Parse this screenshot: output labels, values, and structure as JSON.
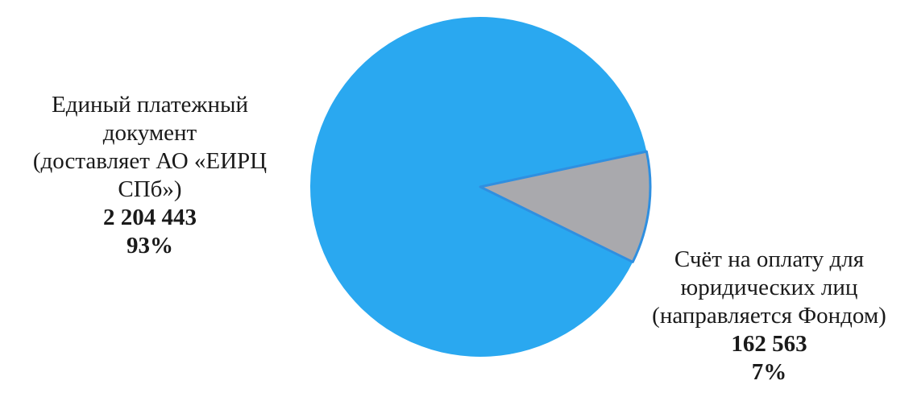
{
  "chart_data": {
    "type": "pie",
    "title": "",
    "slices": [
      {
        "label_lines": [
          "Единый платежный",
          "документ",
          "(доставляет АО «ЕИРЦ",
          "СПб»)"
        ],
        "value": 2204443,
        "value_text": "2 204 443",
        "percent_text": "93%",
        "color": "#2aa8f0"
      },
      {
        "label_lines": [
          "Счёт на оплату для",
          "юридических лиц",
          "(направляется Фондом)"
        ],
        "value": 162563,
        "value_text": "162 563",
        "percent_text": "7%",
        "color": "#a9a9ad"
      }
    ],
    "edge_color": "#2f8fe0",
    "legend": "none"
  }
}
